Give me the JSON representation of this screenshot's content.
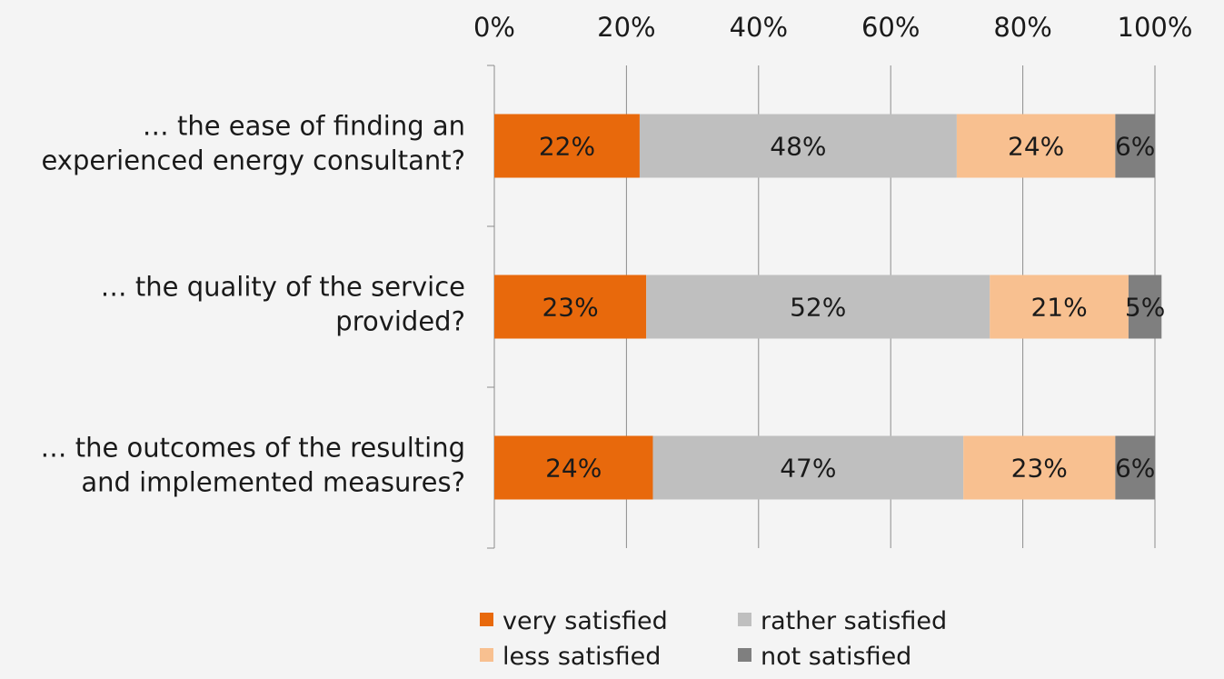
{
  "chart_data": {
    "type": "bar",
    "orientation": "horizontal",
    "stacked": true,
    "percent_axis": true,
    "x_ticks": [
      "0%",
      "20%",
      "40%",
      "60%",
      "80%",
      "100%"
    ],
    "xlim": [
      0,
      100
    ],
    "x_axis_position": "top",
    "grid": "vertical",
    "categories": [
      [
        "… the ease of finding an",
        "experienced energy consultant?"
      ],
      [
        "… the quality of the service",
        "provided?"
      ],
      [
        "… the outcomes of the resulting",
        "and implemented measures?"
      ]
    ],
    "series": [
      {
        "name": "very satisfied",
        "color": "#e8690c",
        "values": [
          22,
          23,
          24
        ],
        "labels": [
          "22%",
          "23%",
          "24%"
        ]
      },
      {
        "name": "rather satisfied",
        "color": "#bfbfbf",
        "values": [
          48,
          52,
          47
        ],
        "labels": [
          "48%",
          "52%",
          "47%"
        ]
      },
      {
        "name": "less satisfied",
        "color": "#f8c090",
        "values": [
          24,
          21,
          23
        ],
        "labels": [
          "24%",
          "21%",
          "23%"
        ]
      },
      {
        "name": "not satisfied",
        "color": "#7f7f7f",
        "values": [
          6,
          5,
          6
        ],
        "labels": [
          "6%",
          "5%",
          "6%"
        ]
      }
    ],
    "legend_position": "bottom"
  }
}
